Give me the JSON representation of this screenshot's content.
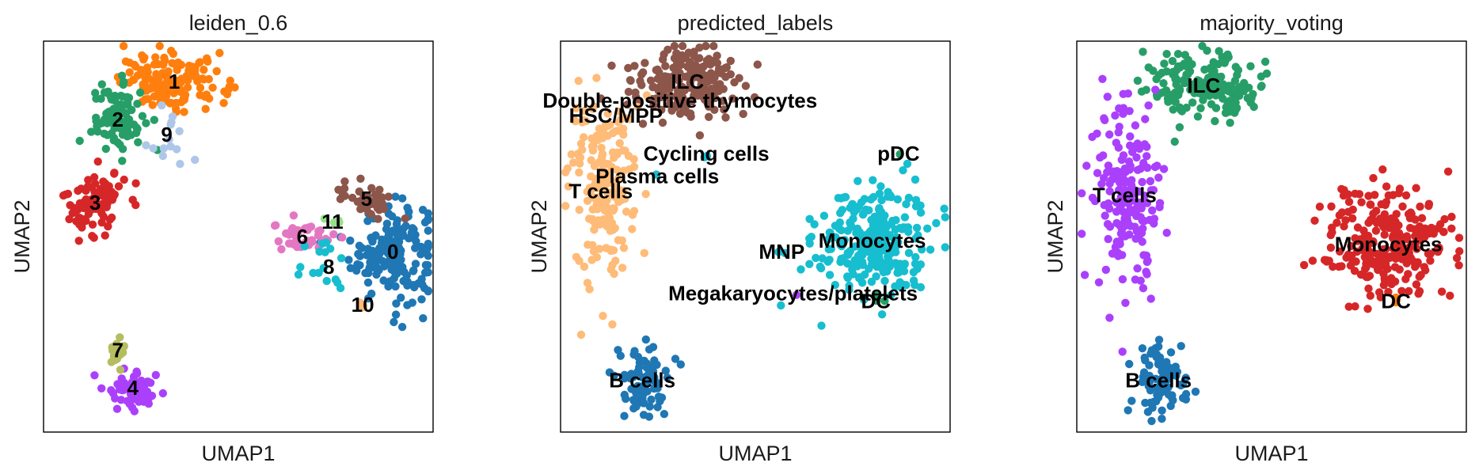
{
  "chart_data": [
    {
      "type": "scatter",
      "title": "leiden_0.6",
      "xlabel": "UMAP1",
      "ylabel": "UMAP2",
      "ticks": "none",
      "clusters": [
        {
          "label": "0",
          "color": "#1f77b4",
          "center": [
            9.1,
            4.6
          ],
          "spread": [
            0.55,
            0.65
          ],
          "n": 170
        },
        {
          "label": "1",
          "color": "#ff7f0e",
          "center": [
            3.3,
            9.1
          ],
          "spread": [
            0.7,
            0.35
          ],
          "n": 150
        },
        {
          "label": "2",
          "color": "#279e68",
          "center": [
            1.8,
            8.1
          ],
          "spread": [
            0.35,
            0.45
          ],
          "n": 85
        },
        {
          "label": "3",
          "color": "#d62728",
          "center": [
            1.2,
            5.9
          ],
          "spread": [
            0.4,
            0.45
          ],
          "n": 90
        },
        {
          "label": "4",
          "color": "#aa40fc",
          "center": [
            2.2,
            1.0
          ],
          "spread": [
            0.35,
            0.25
          ],
          "n": 65
        },
        {
          "label": "5",
          "color": "#8c564b",
          "center": [
            8.4,
            6.0
          ],
          "spread": [
            0.35,
            0.25
          ],
          "n": 40
        },
        {
          "label": "6",
          "color": "#e377c2",
          "center": [
            6.7,
            5.0
          ],
          "spread": [
            0.4,
            0.2
          ],
          "n": 45
        },
        {
          "label": "7",
          "color": "#b5bd61",
          "center": [
            1.8,
            2.0
          ],
          "spread": [
            0.15,
            0.25
          ],
          "n": 22
        },
        {
          "label": "8",
          "color": "#17becf",
          "center": [
            7.4,
            4.2
          ],
          "spread": [
            0.6,
            0.4
          ],
          "n": 16
        },
        {
          "label": "9",
          "color": "#aec7e8",
          "center": [
            3.1,
            7.7
          ],
          "spread": [
            0.4,
            0.5
          ],
          "n": 14
        },
        {
          "label": "10",
          "color": "#ffbb78",
          "center": [
            8.3,
            3.2
          ],
          "spread": [
            0.05,
            0.05
          ],
          "n": 3
        },
        {
          "label": "11",
          "color": "#98df8a",
          "center": [
            7.5,
            5.4
          ],
          "spread": [
            0.1,
            0.1
          ],
          "n": 4
        }
      ]
    },
    {
      "type": "scatter",
      "title": "predicted_labels",
      "xlabel": "UMAP1",
      "ylabel": "UMAP2",
      "ticks": "none",
      "clusters": [
        {
          "label": "Monocytes",
          "color": "#17becf",
          "center": [
            8.1,
            4.9
          ],
          "spread": [
            0.75,
            0.75
          ],
          "n": 260
        },
        {
          "label": "ILC",
          "color": "#8c564b",
          "center": [
            3.2,
            9.1
          ],
          "spread": [
            0.75,
            0.45
          ],
          "n": 190
        },
        {
          "label": "T cells",
          "color": "#ffbb78",
          "center": [
            0.9,
            6.2
          ],
          "spread": [
            0.45,
            1.2
          ],
          "n": 190
        },
        {
          "label": "B cells",
          "color": "#1f77b4",
          "center": [
            2.0,
            1.2
          ],
          "spread": [
            0.35,
            0.45
          ],
          "n": 85
        },
        {
          "label": "Double-positive thymocytes",
          "color": "#8c564b",
          "center": [
            3.0,
            8.6
          ],
          "spread": [
            0.05,
            0.05
          ],
          "n": 1
        },
        {
          "label": "HSC/MPP",
          "color": "#ffbb78",
          "center": [
            1.3,
            8.2
          ],
          "spread": [
            0.05,
            0.05
          ],
          "n": 1
        },
        {
          "label": "Cycling cells",
          "color": "#17becf",
          "center": [
            3.7,
            7.2
          ],
          "spread": [
            0.05,
            0.05
          ],
          "n": 2
        },
        {
          "label": "Plasma cells",
          "color": "#17becf",
          "center": [
            2.4,
            6.6
          ],
          "spread": [
            0.05,
            0.05
          ],
          "n": 1
        },
        {
          "label": "pDC",
          "color": "#279e68",
          "center": [
            8.8,
            7.2
          ],
          "spread": [
            0.05,
            0.05
          ],
          "n": 1
        },
        {
          "label": "MNP",
          "color": "#17becf",
          "center": [
            5.7,
            4.6
          ],
          "spread": [
            0.05,
            0.05
          ],
          "n": 1
        },
        {
          "label": "Megakaryocytes/platelets",
          "color": "#aa40fc",
          "center": [
            6.0,
            3.5
          ],
          "spread": [
            0.05,
            0.05
          ],
          "n": 1
        },
        {
          "label": "DC",
          "color": "#279e68",
          "center": [
            8.2,
            3.3
          ],
          "spread": [
            0.1,
            0.1
          ],
          "n": 3
        }
      ]
    },
    {
      "type": "scatter",
      "title": "majority_voting",
      "xlabel": "UMAP1",
      "ylabel": "UMAP2",
      "ticks": "none",
      "clusters": [
        {
          "label": "Monocytes",
          "color": "#d62728",
          "center": [
            8.1,
            4.8
          ],
          "spread": [
            0.85,
            0.75
          ],
          "n": 260
        },
        {
          "label": "ILC",
          "color": "#279e68",
          "center": [
            3.2,
            9.0
          ],
          "spread": [
            0.75,
            0.45
          ],
          "n": 180
        },
        {
          "label": "T cells",
          "color": "#aa40fc",
          "center": [
            1.1,
            6.1
          ],
          "spread": [
            0.45,
            1.2
          ],
          "n": 190
        },
        {
          "label": "B cells",
          "color": "#1f77b4",
          "center": [
            2.0,
            1.2
          ],
          "spread": [
            0.35,
            0.45
          ],
          "n": 85
        },
        {
          "label": "DC",
          "color": "#ff7f0e",
          "center": [
            8.3,
            3.3
          ],
          "spread": [
            0.05,
            0.05
          ],
          "n": 3
        }
      ]
    }
  ]
}
